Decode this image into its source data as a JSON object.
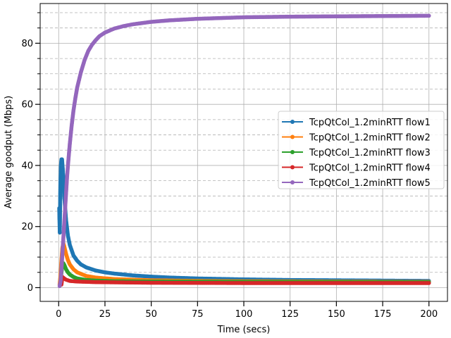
{
  "chart_data": {
    "type": "line",
    "title": "",
    "xlabel": "Time (secs)",
    "ylabel": "Average goodput (Mbps)",
    "xlim": [
      -10,
      210
    ],
    "ylim": [
      -4.5,
      93
    ],
    "x_ticks": [
      0,
      25,
      50,
      75,
      100,
      125,
      150,
      175,
      200
    ],
    "x_tick_labels": [
      "0",
      "25",
      "50",
      "75",
      "100",
      "125",
      "150",
      "175",
      "200"
    ],
    "y_ticks": [
      0,
      20,
      40,
      60,
      80
    ],
    "y_tick_labels": [
      "0",
      "20",
      "40",
      "60",
      "80"
    ],
    "y_minor_ticks": [
      5,
      10,
      15,
      25,
      30,
      35,
      45,
      50,
      55,
      65,
      70,
      75,
      85,
      90
    ],
    "grid": {
      "major": "solid",
      "minor_y": "dashed"
    },
    "legend_position": "center-right",
    "series": [
      {
        "name": "TcpQtCol_1.2minRTT flow1",
        "color": "#1f77b4",
        "x": [
          0.3,
          0.6,
          0.9,
          1.2,
          1.5,
          1.8,
          2.2,
          2.6,
          3,
          3.5,
          4,
          5,
          6,
          8,
          10,
          12,
          15,
          20,
          25,
          30,
          40,
          50,
          60,
          75,
          100,
          125,
          150,
          175,
          200
        ],
        "y": [
          26,
          18,
          33,
          40,
          42,
          42,
          39,
          35,
          30,
          26,
          22,
          17,
          14,
          10.5,
          8.8,
          7.6,
          6.6,
          5.6,
          5.0,
          4.6,
          4.0,
          3.6,
          3.3,
          3.0,
          2.7,
          2.5,
          2.4,
          2.3,
          2.2
        ]
      },
      {
        "name": "TcpQtCol_1.2minRTT flow2",
        "color": "#ff7f0e",
        "x": [
          0.5,
          1,
          1.5,
          2,
          2.5,
          3,
          4,
          5,
          6,
          8,
          10,
          15,
          20,
          30,
          50,
          75,
          100,
          150,
          200
        ],
        "y": [
          1,
          4,
          9,
          13,
          14.5,
          13.5,
          11,
          9,
          7.6,
          6,
          5,
          3.8,
          3.3,
          2.8,
          2.4,
          2.2,
          2.1,
          2.0,
          1.9
        ]
      },
      {
        "name": "TcpQtCol_1.2minRTT flow3",
        "color": "#2ca02c",
        "x": [
          1,
          1.5,
          2,
          2.5,
          3,
          4,
          5,
          6,
          8,
          10,
          15,
          20,
          30,
          50,
          100,
          150,
          200
        ],
        "y": [
          2,
          5,
          7,
          8,
          7.5,
          6,
          5,
          4.3,
          3.5,
          3.0,
          2.5,
          2.3,
          2.1,
          2.0,
          1.9,
          1.85,
          1.8
        ]
      },
      {
        "name": "TcpQtCol_1.2minRTT flow4",
        "color": "#d62728",
        "x": [
          1.5,
          2,
          3,
          4,
          6,
          10,
          20,
          50,
          100,
          150,
          200
        ],
        "y": [
          1,
          3.5,
          3,
          2.6,
          2.2,
          2.0,
          1.8,
          1.6,
          1.5,
          1.5,
          1.5
        ]
      },
      {
        "name": "TcpQtCol_1.2minRTT flow5",
        "color": "#9467bd",
        "x": [
          0.5,
          1,
          1.5,
          2,
          2.5,
          3,
          3.5,
          4,
          4.5,
          5,
          6,
          7,
          8,
          9,
          10,
          12,
          14,
          16,
          18,
          20,
          22,
          25,
          30,
          35,
          40,
          50,
          60,
          75,
          90,
          100,
          125,
          150,
          175,
          200
        ],
        "y": [
          0.5,
          2,
          6,
          11,
          16,
          21,
          26,
          31,
          36,
          40,
          47,
          53,
          58,
          62,
          65.5,
          70.5,
          74.5,
          77.5,
          79.5,
          81,
          82.3,
          83.5,
          84.8,
          85.6,
          86.2,
          87,
          87.5,
          88,
          88.3,
          88.5,
          88.7,
          88.8,
          88.9,
          89
        ]
      }
    ]
  }
}
